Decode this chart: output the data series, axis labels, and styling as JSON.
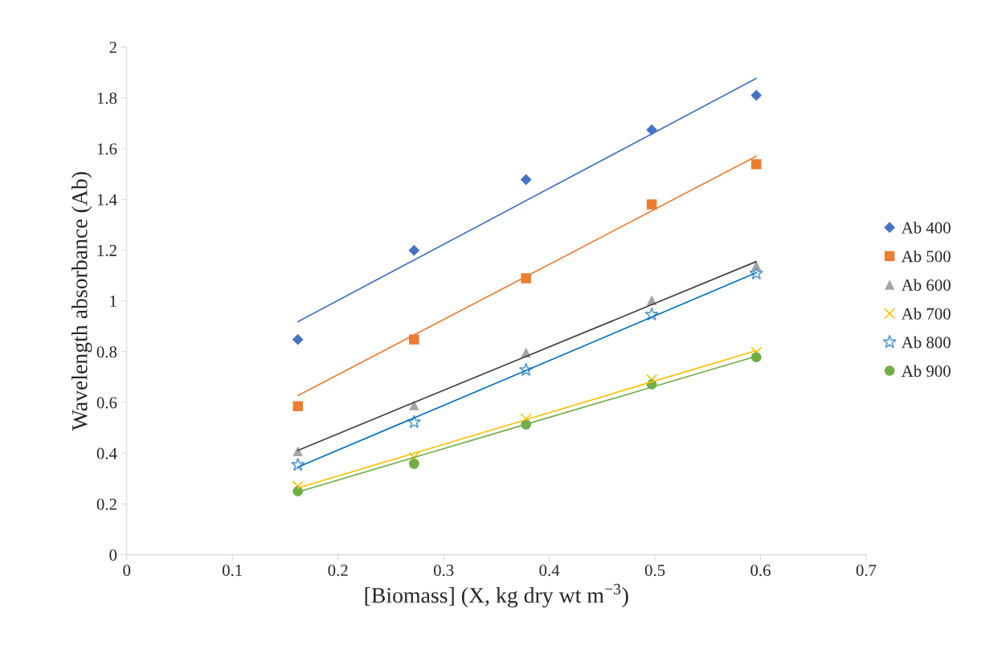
{
  "chart_data": {
    "type": "scatter",
    "xlabel": "[Biomass] (X, kg dry wt m$^{−3}$)",
    "ylabel": "Wavelength absorbance (Ab)",
    "xlim": [
      0,
      0.7
    ],
    "ylim": [
      0,
      2
    ],
    "xticks": [
      0,
      0.1,
      0.2,
      0.3,
      0.4,
      0.5,
      0.6,
      0.7
    ],
    "yticks": [
      0,
      0.2,
      0.4,
      0.6,
      0.8,
      1,
      1.2,
      1.4,
      1.6,
      1.8,
      2
    ],
    "grid": false,
    "legend": "right",
    "x": [
      0.162,
      0.272,
      0.378,
      0.497,
      0.596
    ],
    "series": [
      {
        "name": "Ab 400",
        "color": "#4472c4",
        "marker": "diamond",
        "values": [
          0.848,
          1.199,
          1.478,
          1.674,
          1.81
        ]
      },
      {
        "name": "Ab 500",
        "color": "#ed7d31",
        "marker": "square",
        "values": [
          0.585,
          0.848,
          1.089,
          1.38,
          1.538
        ]
      },
      {
        "name": "Ab 600",
        "color": "#a5a5a5",
        "marker": "triangle",
        "values": [
          0.408,
          0.589,
          0.797,
          1.003,
          1.139
        ]
      },
      {
        "name": "Ab 700",
        "color": "#ffc000",
        "marker": "cross",
        "values": [
          0.269,
          0.383,
          0.535,
          0.69,
          0.797
        ]
      },
      {
        "name": "Ab 800",
        "color": "#5b9bd5",
        "marker": "star",
        "values": [
          0.354,
          0.522,
          0.728,
          0.946,
          1.108
        ]
      },
      {
        "name": "Ab 900",
        "color": "#70ad47",
        "marker": "circle",
        "values": [
          0.25,
          0.358,
          0.513,
          0.671,
          0.778
        ]
      },
      {
        "type": "line",
        "color": "#4472c4",
        "values": [
          0.918,
          1.161,
          1.395,
          1.658,
          1.877
        ]
      },
      {
        "type": "line",
        "color": "#ed7d31",
        "values": [
          0.627,
          0.866,
          1.096,
          1.355,
          1.57
        ]
      },
      {
        "type": "line",
        "color": "#404040",
        "values": [
          0.411,
          0.6,
          0.781,
          0.985,
          1.155
        ]
      },
      {
        "type": "line",
        "color": "#ffc000",
        "values": [
          0.263,
          0.4,
          0.532,
          0.681,
          0.804
        ]
      },
      {
        "type": "line",
        "color": "#0070c0",
        "values": [
          0.345,
          0.539,
          0.726,
          0.936,
          1.111
        ]
      },
      {
        "type": "line",
        "color": "#70ad47",
        "values": [
          0.247,
          0.383,
          0.514,
          0.66,
          0.782
        ]
      }
    ]
  }
}
